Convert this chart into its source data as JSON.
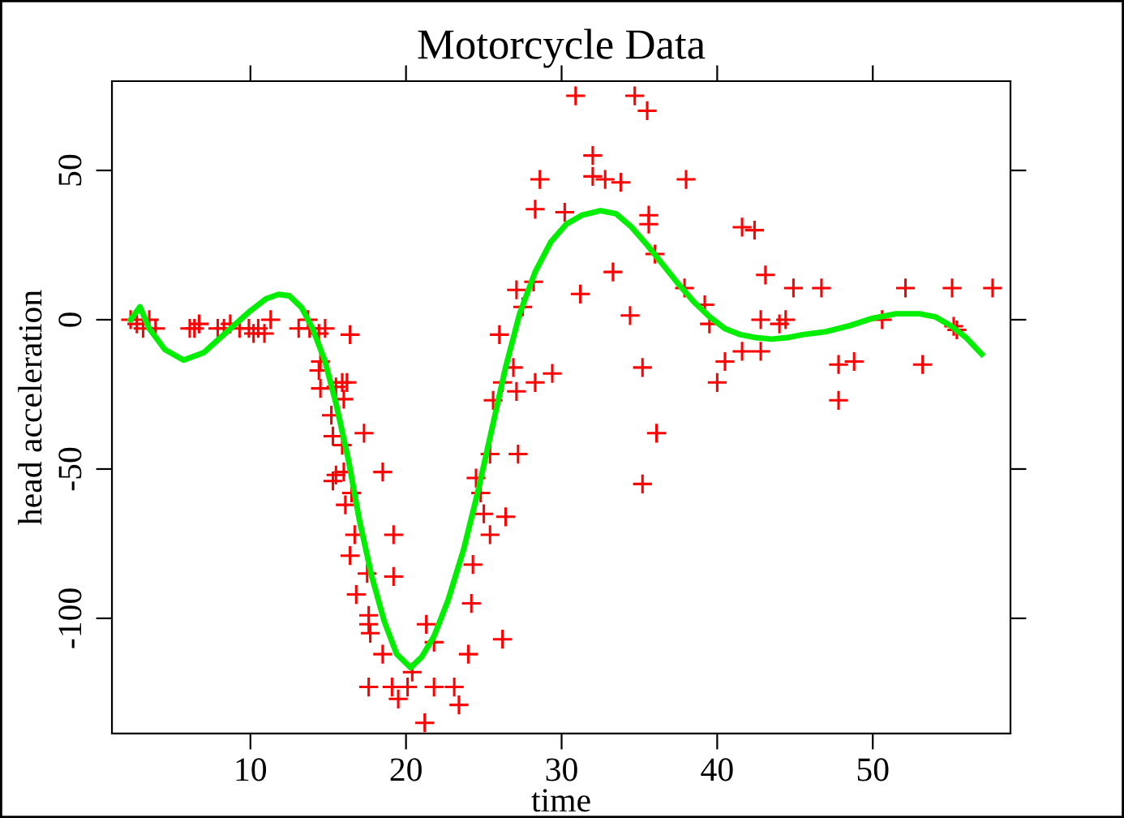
{
  "chart_data": {
    "type": "scatter",
    "title": "Motorcycle Data",
    "xlabel": "time",
    "ylabel": "head acceleration",
    "marker": "cross",
    "grid": false,
    "legend": false,
    "xlim": [
      1.1,
      58.85
    ],
    "ylim": [
      -138.6,
      79.9
    ],
    "xticks": [
      10,
      20,
      30,
      40,
      50
    ],
    "yticks": [
      -100,
      -50,
      0,
      50
    ],
    "series": [
      {
        "color": "#ff0000",
        "x": [
          2.3,
          2.7,
          3.1,
          3.5,
          3.9,
          6.1,
          6.4,
          6.7,
          7.9,
          8.3,
          8.7,
          9.3,
          9.9,
          10.2,
          10.5,
          10.9,
          11.3,
          13.1,
          13.7,
          13.8,
          14.4,
          14.5,
          14.4,
          14.5,
          14.8,
          15.2,
          15.3,
          15.3,
          15.5,
          15.5,
          15.9,
          16.0,
          16.2,
          16.4,
          15.9,
          16.0,
          16.1,
          16.4,
          16.5,
          16.7,
          16.8,
          17.3,
          17.5,
          17.6,
          17.6,
          17.7,
          17.6,
          18.5,
          18.5,
          19.2,
          19.2,
          19.1,
          19.5,
          20.1,
          20.4,
          21.3,
          21.8,
          21.2,
          21.8,
          23.1,
          23.4,
          24.0,
          24.2,
          24.3,
          24.5,
          24.8,
          25.0,
          25.4,
          25.4,
          25.6,
          26.0,
          26.2,
          26.2,
          26.4,
          26.9,
          27.1,
          27.2,
          27.1,
          27.5,
          28.2,
          28.3,
          28.3,
          28.6,
          29.4,
          30.2,
          30.9,
          31.2,
          32.0,
          32.0,
          32.8,
          33.3,
          33.8,
          34.4,
          34.7,
          35.2,
          35.2,
          35.5,
          35.6,
          35.6,
          36.0,
          36.1,
          37.9,
          38.0,
          39.2,
          39.5,
          40.0,
          40.5,
          41.6,
          42.4,
          41.6,
          42.8,
          42.8,
          43.1,
          44.0,
          44.4,
          44.9,
          46.7,
          47.8,
          47.8,
          48.8,
          50.6,
          52.1,
          53.2,
          55.1,
          55.2,
          55.4,
          57.7
        ],
        "values": [
          0,
          -1.4,
          -2.9,
          0,
          -2.9,
          -2.9,
          -2.9,
          -1.4,
          -2.9,
          -2.9,
          -1.4,
          -2.9,
          -2.9,
          -4.6,
          -2.9,
          -4.6,
          0,
          -2.9,
          0,
          -2.9,
          -4.6,
          -14,
          -17,
          -23,
          -2.9,
          -32,
          -39,
          -54,
          -52,
          -22.5,
          -21,
          -26.6,
          -21,
          -5,
          -42,
          -51,
          -62,
          -79,
          -58,
          -72,
          -92,
          -38,
          -85,
          -99,
          -102,
          -105,
          -123,
          -51,
          -112,
          -72,
          -86,
          -123,
          -127,
          -123,
          -118,
          -102,
          -108,
          -135,
          -123,
          -123,
          -129,
          -112,
          -95,
          -82,
          -53,
          -58,
          -65,
          -72,
          -45,
          -27,
          -5,
          -21,
          -107,
          -66,
          -16,
          -24,
          -45,
          10,
          4.3,
          12.7,
          -21,
          37,
          47,
          -18,
          36,
          75,
          8.6,
          55,
          48,
          47,
          16,
          46,
          1.4,
          75,
          -16,
          -55,
          70,
          35,
          32,
          22,
          -38,
          10.6,
          47,
          5,
          -1.4,
          -21,
          -14,
          31,
          30,
          -10.6,
          0,
          -10.6,
          15,
          -1.4,
          0,
          10.6,
          10.6,
          -15,
          -27,
          -14,
          0,
          10.6,
          -15,
          10.6,
          -2.2,
          -3.4,
          10.6
        ]
      },
      {
        "type": "line",
        "color": "#00ee00",
        "marker": "none",
        "line_style": "solid",
        "x": [
          2.3,
          2.9,
          3.5,
          4.5,
          5.7,
          7,
          8.5,
          10,
          11,
          11.8,
          12.5,
          13.3,
          14,
          14.8,
          15.5,
          16.3,
          17,
          17.8,
          18.6,
          19.4,
          20.3,
          21,
          21.8,
          22.7,
          23.7,
          24.6,
          25.5,
          26.4,
          27.3,
          28.3,
          29.3,
          30.3,
          31.3,
          32.5,
          33.5,
          34.5,
          35.5,
          36.5,
          37.5,
          38.5,
          39.5,
          40.5,
          41.5,
          42.5,
          43.5,
          44.5,
          45.5,
          47,
          48.5,
          50,
          51.5,
          53,
          54,
          55,
          56,
          57
        ],
        "values": [
          0,
          4.3,
          -3,
          -10,
          -13.5,
          -11,
          -4,
          3,
          7,
          8.5,
          8,
          4,
          -3,
          -14,
          -28,
          -47,
          -67,
          -86,
          -101,
          -112,
          -116.5,
          -113,
          -106,
          -94,
          -77,
          -58,
          -37,
          -16,
          2,
          16,
          26,
          32,
          35,
          36.5,
          35.5,
          31,
          25,
          18.5,
          12,
          6,
          1,
          -3,
          -5,
          -6,
          -6.5,
          -6,
          -5,
          -4,
          -2,
          0.5,
          2,
          2,
          1,
          -2,
          -6,
          -11.5
        ]
      }
    ]
  }
}
